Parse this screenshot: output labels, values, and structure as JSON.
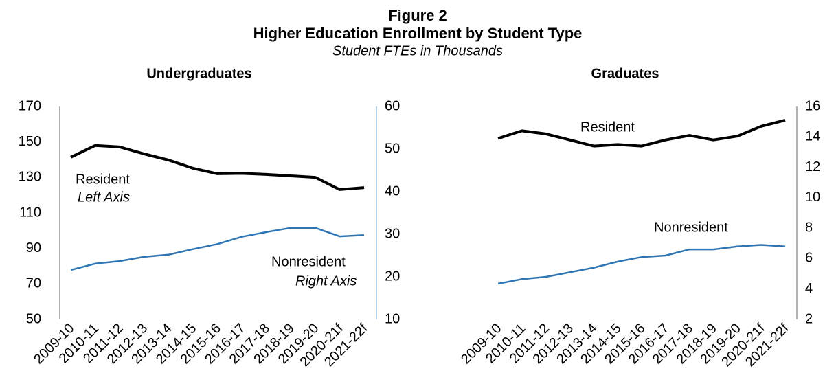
{
  "header": {
    "figure": "Figure 2",
    "title": "Higher Education Enrollment by Student Type",
    "subtitle": "Student FTEs in Thousands"
  },
  "chart_data": [
    {
      "type": "line",
      "title": "Undergraduates",
      "categories": [
        "2009-10",
        "2010-11",
        "2011-12",
        "2012-13",
        "2013-14",
        "2014-15",
        "2015-16",
        "2016-17",
        "2017-18",
        "2018-19",
        "2019-20",
        "2020-21f",
        "2021-22f"
      ],
      "series": [
        {
          "name": "Resident",
          "color": "#000000",
          "axis": "y",
          "values": [
            141.4,
            148,
            147.2,
            143.3,
            139.8,
            135.2,
            132.1,
            132.3,
            131.7,
            130.9,
            130.1,
            123.2,
            124.3
          ]
        },
        {
          "name": "Nonresident",
          "color": "#2e75b6",
          "axis": "y2",
          "values": [
            21.6,
            23.1,
            23.7,
            24.7,
            25.2,
            26.5,
            27.7,
            29.4,
            30.5,
            31.5,
            31.5,
            29.5,
            29.8
          ]
        }
      ],
      "ylim": [
        50,
        170
      ],
      "yticks": [
        50,
        70,
        90,
        110,
        130,
        150,
        170
      ],
      "y2lim": [
        10,
        60
      ],
      "y2ticks": [
        10,
        20,
        30,
        40,
        50,
        60
      ],
      "annotations": [
        {
          "text": "Resident",
          "series": 0,
          "style": "normal"
        },
        {
          "text": "Left Axis",
          "series": 0,
          "style": "italic"
        },
        {
          "text": "Nonresident",
          "series": 1,
          "style": "normal"
        },
        {
          "text": "Right Axis",
          "series": 1,
          "style": "italic"
        }
      ]
    },
    {
      "type": "line",
      "title": "Graduates",
      "y_axis_side": "right",
      "categories": [
        "2009-10",
        "2010-11",
        "2011-12",
        "2012-13",
        "2013-14",
        "2014-15",
        "2015-16",
        "2016-17",
        "2017-18",
        "2018-19",
        "2019-20",
        "2020-21f",
        "2021-22f"
      ],
      "series": [
        {
          "name": "Resident",
          "color": "#000000",
          "axis": "y",
          "values": [
            13.9,
            14.4,
            14.2,
            13.8,
            13.4,
            13.5,
            13.4,
            13.8,
            14.1,
            13.8,
            14.05,
            14.7,
            15.1
          ]
        },
        {
          "name": "Nonresident",
          "color": "#2e75b6",
          "axis": "y",
          "values": [
            4.35,
            4.65,
            4.8,
            5.1,
            5.4,
            5.8,
            6.1,
            6.2,
            6.6,
            6.6,
            6.8,
            6.9,
            6.8
          ]
        }
      ],
      "ylim": [
        2,
        16
      ],
      "yticks": [
        2,
        4,
        6,
        8,
        10,
        12,
        14,
        16
      ],
      "annotations": [
        {
          "text": "Resident",
          "series": 0,
          "style": "normal"
        },
        {
          "text": "Nonresident",
          "series": 1,
          "style": "normal"
        }
      ]
    }
  ]
}
